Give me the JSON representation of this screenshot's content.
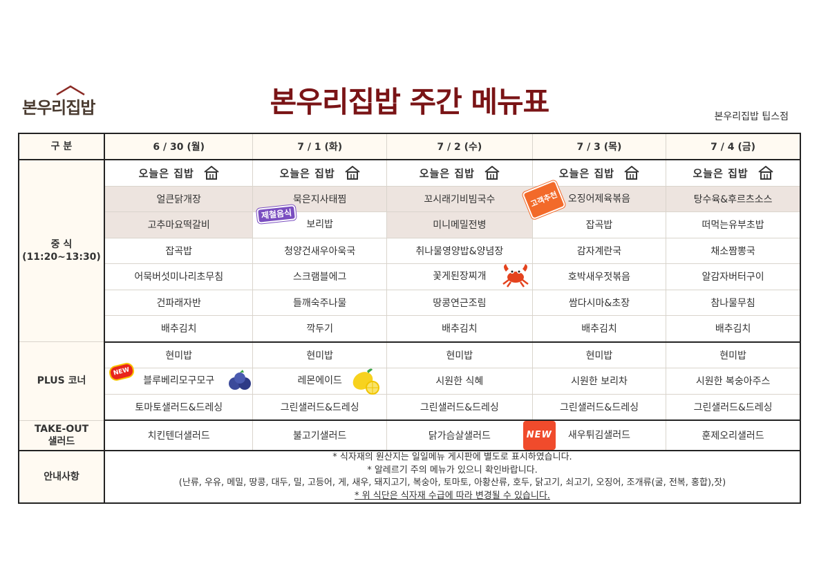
{
  "header": {
    "logo_text": "본우리집밥",
    "title": "본우리집밥 주간 메뉴표",
    "branch": "본우리집밥 팁스점"
  },
  "table": {
    "category_header": "구 분",
    "days": [
      "6 / 30 (월)",
      "7 / 1 (화)",
      "7 / 2 (수)",
      "7 / 3 (목)",
      "7 / 4 (금)"
    ],
    "today_label": "오늘은 집밥",
    "lunch": {
      "label": "중 식",
      "time": "(11:20~13:30)",
      "rows": [
        [
          "얼큰닭개장",
          "묵은지사태찜",
          "꼬시래기비빔국수",
          "오징어제육볶음",
          "탕수육&후르츠소스"
        ],
        [
          "고추마요떡갈비",
          "보리밥",
          "미니메밀전병",
          "잡곡밥",
          "떠먹는유부초밥"
        ],
        [
          "잡곡밥",
          "청양건새우아욱국",
          "취나물영양밥&양념장",
          "감자계란국",
          "채소짬뽕국"
        ],
        [
          "어묵버섯미나리초무침",
          "스크램블에그",
          "꽃게된장찌개",
          "호박새우젓볶음",
          "알감자버터구이"
        ],
        [
          "건파래자반",
          "들깨숙주나물",
          "땅콩연근조림",
          "쌈다시마&초장",
          "참나물무침"
        ],
        [
          "배추김치",
          "깍두기",
          "배추김치",
          "배추김치",
          "배추김치"
        ]
      ]
    },
    "plus": {
      "label": "PLUS 코너",
      "rows": [
        [
          "현미밥",
          "현미밥",
          "현미밥",
          "현미밥",
          "현미밥"
        ],
        [
          "블루베리모구모구",
          "레몬에이드",
          "시원한 식혜",
          "시원한 보리차",
          "시원한 복숭아주스"
        ],
        [
          "토마토샐러드&드레싱",
          "그린샐러드&드레싱",
          "그린샐러드&드레싱",
          "그린샐러드&드레싱",
          "그린샐러드&드레싱"
        ]
      ]
    },
    "takeout": {
      "label_line1": "TAKE-OUT",
      "label_line2": "샐러드",
      "items": [
        "치킨텐더샐러드",
        "불고기샐러드",
        "닭가슴살샐러드",
        "새우튀김샐러드",
        "훈제오리샐러드"
      ]
    },
    "notice": {
      "label": "안내사항",
      "lines": [
        "* 식자재의 원산지는 일일메뉴 게시판에 별도로 표시하였습니다.",
        "* 알레르기 주의 메뉴가 있으니 확인바랍니다.",
        "(난류, 우유, 메밀, 땅콩, 대두, 밀, 고등어, 게, 새우, 돼지고기, 복숭아, 토마토, 아황산류, 호두, 닭고기, 쇠고기, 오징어, 조개류(굴, 전복, 홍합),잣)",
        "* 위 식단은 식자재 수급에 따라 변경될 수 있습니다."
      ]
    }
  },
  "stickers": {
    "season": "제철음식",
    "recommend": "고객추천",
    "new_small": "NEW",
    "new_large": "NEW"
  },
  "colors": {
    "title": "#7a1416",
    "header_bg": "#fffaf2",
    "highlight_bg": "#ede4df",
    "border": "#222222"
  }
}
